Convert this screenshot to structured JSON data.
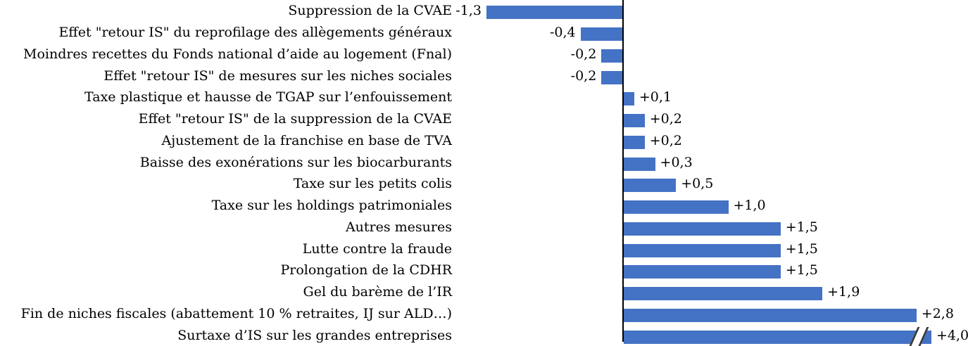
{
  "chart_data": {
    "type": "bar",
    "orientation": "horizontal",
    "title": "",
    "xlabel": "",
    "ylabel": "",
    "grid": false,
    "legend": false,
    "baseline_at_zero": true,
    "displayed_x_range": [
      -1.45,
      2.95
    ],
    "last_bar_truncated_with_axis_break": true,
    "truncated_bar_index": 15,
    "bar_color": "#4472C4",
    "axis_color": "#000000",
    "text_color": "#000000",
    "categories": [
      "Suppression de la CVAE",
      "Effet \"retour IS\" du reprofilage des allègements généraux",
      "Moindres recettes du Fonds national d’aide au logement (Fnal)",
      "Effet \"retour IS\" de mesures sur les niches sociales",
      "Taxe plastique et hausse de TGAP sur l’enfouissement",
      "Effet \"retour IS\" de la suppression de la CVAE",
      "Ajustement de la franchise en base de TVA",
      "Baisse des exonérations sur les biocarburants",
      "Taxe sur les petits colis",
      "Taxe sur les holdings patrimoniales",
      "Autres mesures",
      "Lutte contre la fraude",
      "Prolongation de la CDHR",
      "Gel du barème de l’IR",
      "Fin de niches fiscales (abattement 10 % retraites, IJ sur ALD…)",
      "Surtaxe d’IS sur les grandes entreprises"
    ],
    "values": [
      -1.3,
      -0.4,
      -0.2,
      -0.2,
      0.1,
      0.2,
      0.2,
      0.3,
      0.5,
      1.0,
      1.5,
      1.5,
      1.5,
      1.9,
      2.8,
      4.0
    ],
    "value_labels": [
      "-1,3",
      "-0,4",
      "-0,2",
      "-0,2",
      "+0,1",
      "+0,2",
      "+0,2",
      "+0,3",
      "+0,5",
      "+1,0",
      "+1,5",
      "+1,5",
      "+1,5",
      "+1,9",
      "+2,8",
      "+4,0"
    ]
  }
}
